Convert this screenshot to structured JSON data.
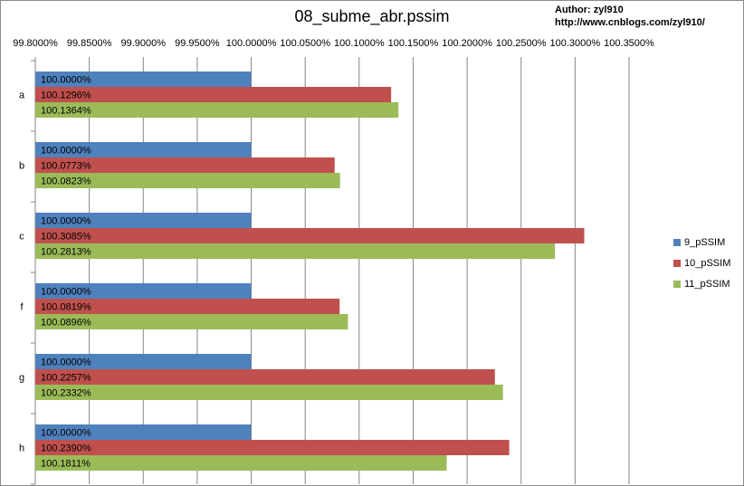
{
  "author": {
    "line1": "Author: zyl910",
    "line2": "http://www.cnblogs.com/zyl910/"
  },
  "chart_data": {
    "type": "bar",
    "orientation": "horizontal",
    "title": "08_subme_abr.pssim",
    "xlabel": "",
    "ylabel": "",
    "xlim": [
      99.8,
      100.35
    ],
    "x_ticks": [
      "99.8000%",
      "99.8500%",
      "99.9000%",
      "99.9500%",
      "100.0000%",
      "100.0500%",
      "100.1000%",
      "100.1500%",
      "100.2000%",
      "100.2500%",
      "100.3000%",
      "100.3500%"
    ],
    "x_tick_values": [
      99.8,
      99.85,
      99.9,
      99.95,
      100.0,
      100.05,
      100.1,
      100.15,
      100.2,
      100.25,
      100.3,
      100.35
    ],
    "x_axis_position": "top",
    "categories": [
      "a",
      "b",
      "c",
      "f",
      "g",
      "h"
    ],
    "series": [
      {
        "name": "9_pSSIM",
        "color": "#4f81bd",
        "values": [
          100.0,
          100.0,
          100.0,
          100.0,
          100.0,
          100.0
        ],
        "labels": [
          "100.0000%",
          "100.0000%",
          "100.0000%",
          "100.0000%",
          "100.0000%",
          "100.0000%"
        ]
      },
      {
        "name": "10_pSSIM",
        "color": "#c0504d",
        "values": [
          100.1296,
          100.0773,
          100.3085,
          100.0819,
          100.2257,
          100.239
        ],
        "labels": [
          "100.1296%",
          "100.0773%",
          "100.3085%",
          "100.0819%",
          "100.2257%",
          "100.2390%"
        ]
      },
      {
        "name": "11_pSSIM",
        "color": "#9bbb59",
        "values": [
          100.1364,
          100.0823,
          100.2813,
          100.0896,
          100.2332,
          100.1811
        ],
        "labels": [
          "100.1364%",
          "100.0823%",
          "100.2813%",
          "100.0896%",
          "100.2332%",
          "100.1811%"
        ]
      }
    ],
    "grid": true,
    "legend_position": "right"
  }
}
